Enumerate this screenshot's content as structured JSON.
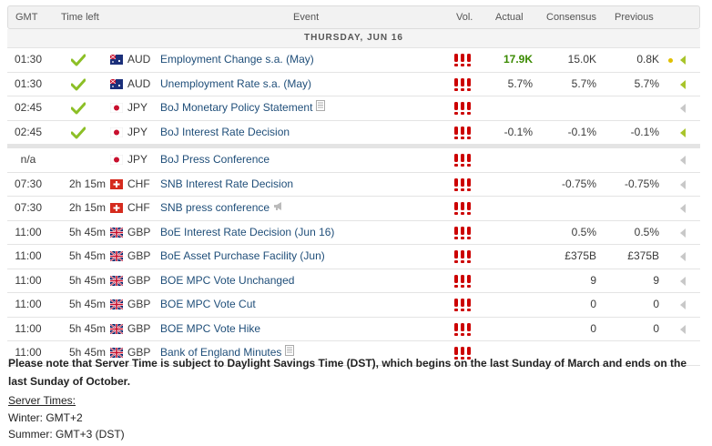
{
  "header": {
    "gmt": "GMT",
    "time_left": "Time left",
    "event": "Event",
    "vol": "Vol.",
    "actual": "Actual",
    "consensus": "Consensus",
    "previous": "Previous"
  },
  "day_label": "THURSDAY, JUN 16",
  "icons": {
    "check": "checkmark-icon",
    "volume": "high-volatility-icon",
    "detail": "document-icon",
    "speech": "megaphone-icon",
    "expand": "arrow-left-icon"
  },
  "colors": {
    "actual_positive": "#3a8a00",
    "event_link": "#1f4e79",
    "volatility": "#cc0000",
    "check": "#8cbf26"
  },
  "events": [
    {
      "time": "01:30",
      "time_left": "",
      "done": true,
      "flag": "AU",
      "currency": "AUD",
      "name": "Employment Change s.a. (May)",
      "actual": "17.9K",
      "actual_highlight": true,
      "consensus": "15.0K",
      "previous": "0.8K",
      "dot": true,
      "active": true
    },
    {
      "time": "01:30",
      "time_left": "",
      "done": true,
      "flag": "AU",
      "currency": "AUD",
      "name": "Unemployment Rate s.a. (May)",
      "actual": "5.7%",
      "consensus": "5.7%",
      "previous": "5.7%",
      "active": true
    },
    {
      "time": "02:45",
      "time_left": "",
      "done": true,
      "flag": "JP",
      "currency": "JPY",
      "name": "BoJ Monetary Policy Statement",
      "doc": true,
      "actual": "",
      "consensus": "",
      "previous": "",
      "active": false
    },
    {
      "time": "02:45",
      "time_left": "",
      "done": true,
      "flag": "JP",
      "currency": "JPY",
      "name": "BoJ Interest Rate Decision",
      "actual": "-0.1%",
      "consensus": "-0.1%",
      "previous": "-0.1%",
      "active": true
    },
    {
      "time": "n/a",
      "time_left": "",
      "done": false,
      "flag": "JP",
      "currency": "JPY",
      "name": "BoJ Press Conference",
      "actual": "",
      "consensus": "",
      "previous": "",
      "sep": true
    },
    {
      "time": "07:30",
      "time_left": "2h 15m",
      "done": false,
      "flag": "CH",
      "currency": "CHF",
      "name": "SNB Interest Rate Decision",
      "actual": "",
      "consensus": "-0.75%",
      "previous": "-0.75%"
    },
    {
      "time": "07:30",
      "time_left": "2h 15m",
      "done": false,
      "flag": "CH",
      "currency": "CHF",
      "name": "SNB press conference",
      "speech": true,
      "actual": "",
      "consensus": "",
      "previous": ""
    },
    {
      "time": "11:00",
      "time_left": "5h 45m",
      "done": false,
      "flag": "GB",
      "currency": "GBP",
      "name": "BoE Interest Rate Decision (Jun 16)",
      "actual": "",
      "consensus": "0.5%",
      "previous": "0.5%"
    },
    {
      "time": "11:00",
      "time_left": "5h 45m",
      "done": false,
      "flag": "GB",
      "currency": "GBP",
      "name": "BoE Asset Purchase Facility (Jun)",
      "actual": "",
      "consensus": "£375B",
      "previous": "£375B"
    },
    {
      "time": "11:00",
      "time_left": "5h 45m",
      "done": false,
      "flag": "GB",
      "currency": "GBP",
      "name": "BOE MPC Vote Unchanged",
      "actual": "",
      "consensus": "9",
      "previous": "9"
    },
    {
      "time": "11:00",
      "time_left": "5h 45m",
      "done": false,
      "flag": "GB",
      "currency": "GBP",
      "name": "BOE MPC Vote Cut",
      "actual": "",
      "consensus": "0",
      "previous": "0"
    },
    {
      "time": "11:00",
      "time_left": "5h 45m",
      "done": false,
      "flag": "GB",
      "currency": "GBP",
      "name": "BOE MPC Vote Hike",
      "actual": "",
      "consensus": "0",
      "previous": "0"
    },
    {
      "time": "11:00",
      "time_left": "5h 45m",
      "done": false,
      "flag": "GB",
      "currency": "GBP",
      "name": "Bank of England Minutes",
      "doc": true,
      "actual": "",
      "consensus": "",
      "previous": "",
      "no_arrow": true
    }
  ],
  "note": "Please note that Server Time is subject to Daylight Savings Time (DST), which begins on the last Sunday of March and ends on the last Sunday of October.",
  "server": {
    "title": "Server Times:",
    "winter": "Winter: GMT+2",
    "summer": "Summer: GMT+3 (DST)"
  }
}
